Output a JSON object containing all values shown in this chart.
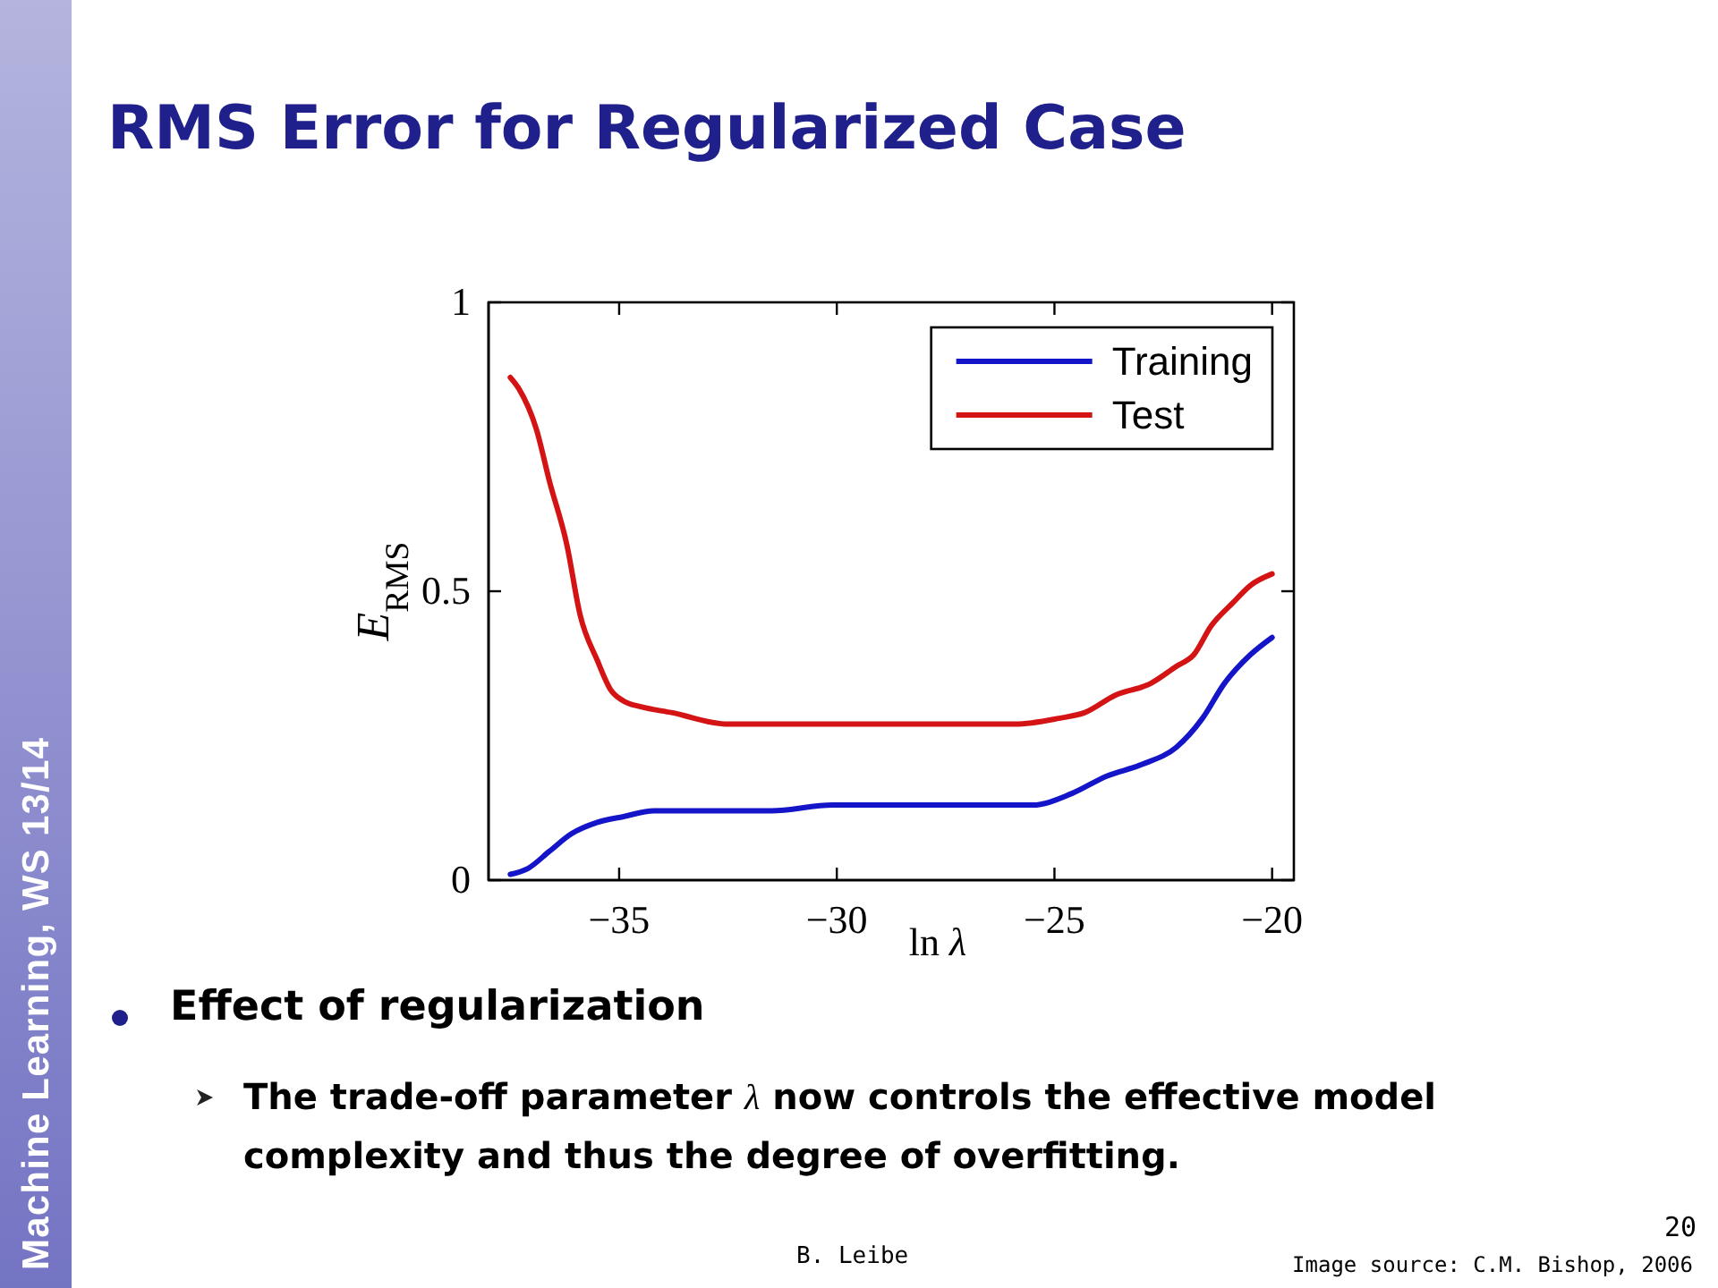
{
  "chart_data": {
    "type": "line",
    "title": "RMS Error for Regularized Case",
    "xlabel": "ln λ",
    "ylabel": "E$_{RMS}$",
    "xlim": [
      -38,
      -19.5
    ],
    "ylim": [
      0,
      1
    ],
    "xticks": [
      {
        "value": -35,
        "label": "−35"
      },
      {
        "value": -30,
        "label": "−30"
      },
      {
        "value": -25,
        "label": "−25"
      },
      {
        "value": -20,
        "label": "−20"
      }
    ],
    "yticks": [
      0,
      0.5,
      1
    ],
    "legend": "top right",
    "series": [
      {
        "name": "Training",
        "color": "#1414c8",
        "x": [
          -37.5,
          -37.1,
          -36.6,
          -36.1,
          -35.5,
          -34.9,
          -34.2,
          -33,
          -31.5,
          -30.1,
          -28,
          -26.6,
          -25.5,
          -24.6,
          -23.8,
          -23,
          -22.2,
          -21.6,
          -21.1,
          -20.5,
          -20
        ],
        "values": [
          0.01,
          0.02,
          0.05,
          0.08,
          0.1,
          0.11,
          0.12,
          0.12,
          0.12,
          0.13,
          0.13,
          0.13,
          0.13,
          0.15,
          0.18,
          0.2,
          0.23,
          0.28,
          0.34,
          0.39,
          0.42
        ]
      },
      {
        "name": "Test",
        "color": "#d41414",
        "x": [
          -37.5,
          -37.3,
          -36.9,
          -36.6,
          -36.2,
          -35.9,
          -35.5,
          -35.2,
          -34.9,
          -34.5,
          -33.8,
          -32.5,
          -31.5,
          -30.1,
          -28.7,
          -27.3,
          -25.9,
          -24.9,
          -24.3,
          -23.6,
          -22.8,
          -22.2,
          -21.8,
          -21.4,
          -20.9,
          -20.5,
          -20
        ],
        "values": [
          0.87,
          0.85,
          0.78,
          0.69,
          0.58,
          0.46,
          0.38,
          0.33,
          0.31,
          0.3,
          0.29,
          0.27,
          0.27,
          0.27,
          0.27,
          0.27,
          0.27,
          0.28,
          0.29,
          0.32,
          0.34,
          0.37,
          0.39,
          0.44,
          0.48,
          0.51,
          0.53
        ]
      }
    ],
    "annotations": [
      "Machine Learning, WS 13/14",
      "Effect of regularization",
      "The trade-off parameter λ now controls the effective model complexity and thus the degree of overfitting.",
      "B. Leibe",
      "20",
      "Image source: C.M. Bishop, 2006"
    ]
  }
}
